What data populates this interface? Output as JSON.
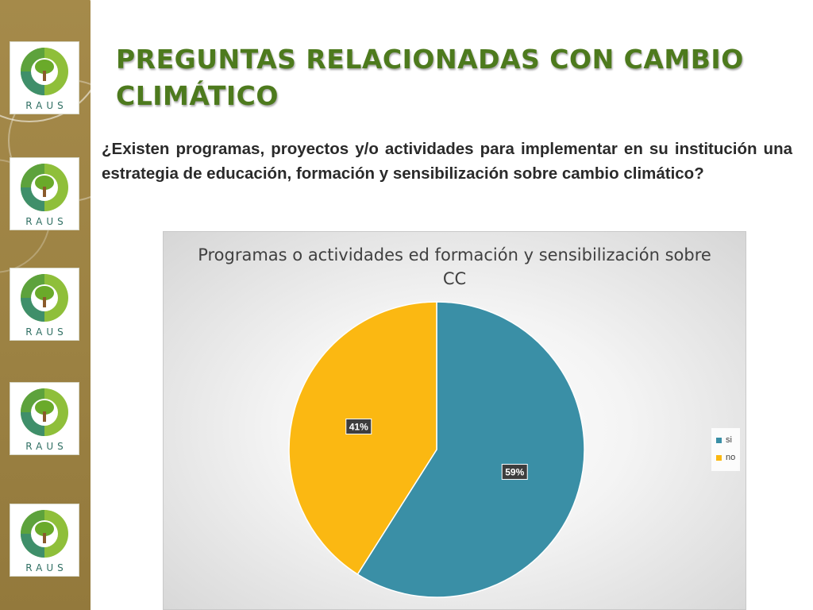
{
  "slide": {
    "title": "PREGUNTAS RELACIONADAS CON CAMBIO CLIMÁTICO",
    "question": "¿Existen programas, proyectos y/o actividades para implementar en su institución una estrategia de educación, formación y sensibilización sobre cambio climático?"
  },
  "sidebar": {
    "logos": [
      {
        "text": "RAUS"
      },
      {
        "text": "RAUS"
      },
      {
        "text": "RAUS"
      },
      {
        "text": "RAUS"
      },
      {
        "text": "RAUS"
      }
    ]
  },
  "colors": {
    "title": "#4d7a1d",
    "si": "#3a8fa6",
    "no": "#fbb812"
  },
  "chart_data": {
    "type": "pie",
    "title": "Programas o actividades ed formación y sensibilización sobre CC",
    "categories": [
      "si",
      "no"
    ],
    "values": [
      59,
      41
    ],
    "data_labels": [
      "59%",
      "41%"
    ],
    "colors": [
      "#3a8fa6",
      "#fbb812"
    ],
    "legend_position": "right",
    "start_angle_deg": 0,
    "direction": "clockwise"
  }
}
